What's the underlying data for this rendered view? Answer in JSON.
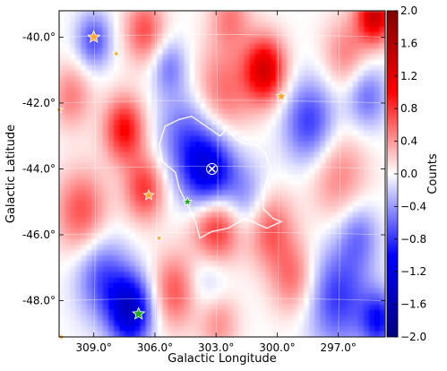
{
  "chart_data": {
    "type": "heatmap",
    "title": "",
    "xlabel": "Galactic Longitude",
    "ylabel": "Galactic Latitude",
    "colorbar_label": "Counts",
    "x_ticks": [
      309,
      306,
      303,
      300,
      297
    ],
    "x_tick_labels": [
      "309.0°",
      "306.0°",
      "303.0°",
      "300.0°",
      "297.0°"
    ],
    "y_ticks": [
      -40,
      -42,
      -44,
      -46,
      -48
    ],
    "y_tick_labels": [
      "-40.0°",
      "-42.0°",
      "-44.0°",
      "-46.0°",
      "-48.0°"
    ],
    "xlim": [
      310.7,
      294.7
    ],
    "ylim": [
      -49.1,
      -39.2
    ],
    "color_range": [
      -2.0,
      2.0
    ],
    "colorbar_ticks": [
      2.0,
      1.6,
      1.2,
      0.8,
      0.4,
      0.0,
      -0.4,
      -0.8,
      -1.2,
      -1.6,
      -2.0
    ],
    "colorbar_tick_labels": [
      "2.0",
      "1.6",
      "1.2",
      "0.8",
      "0.4",
      "0.0",
      "−0.4",
      "−0.8",
      "−1.2",
      "−1.6",
      "−2.0"
    ],
    "colormap": [
      "#00007f",
      "#0000ff",
      "#ffffff",
      "#ff0000",
      "#7f0000"
    ],
    "grid": true,
    "field_blobs": [
      {
        "lon": 303.3,
        "lat": -44.2,
        "amp": -1.3,
        "sigma": 0.9
      },
      {
        "lon": 304.5,
        "lat": -43.0,
        "amp": -0.6,
        "sigma": 1.0
      },
      {
        "lon": 301.5,
        "lat": -45.0,
        "amp": -0.5,
        "sigma": 0.8
      },
      {
        "lon": 307.2,
        "lat": -48.3,
        "amp": -1.4,
        "sigma": 0.75
      },
      {
        "lon": 308.6,
        "lat": -47.3,
        "amp": -0.7,
        "sigma": 0.9
      },
      {
        "lon": 309.0,
        "lat": -40.1,
        "amp": -0.7,
        "sigma": 0.6
      },
      {
        "lon": 305.3,
        "lat": -40.9,
        "amp": -0.5,
        "sigma": 0.6
      },
      {
        "lon": 298.4,
        "lat": -42.6,
        "amp": -0.8,
        "sigma": 0.9
      },
      {
        "lon": 297.0,
        "lat": -47.9,
        "amp": -0.8,
        "sigma": 1.1
      },
      {
        "lon": 295.6,
        "lat": -41.8,
        "amp": -0.6,
        "sigma": 0.7
      },
      {
        "lon": 295.0,
        "lat": -48.6,
        "amp": -0.9,
        "sigma": 0.6
      },
      {
        "lon": 303.4,
        "lat": -47.4,
        "amp": -0.4,
        "sigma": 0.8
      },
      {
        "lon": 300.6,
        "lat": -41.0,
        "amp": 1.3,
        "sigma": 0.7
      },
      {
        "lon": 302.7,
        "lat": -41.7,
        "amp": 0.6,
        "sigma": 1.0
      },
      {
        "lon": 307.5,
        "lat": -42.8,
        "amp": 1.0,
        "sigma": 0.7
      },
      {
        "lon": 306.5,
        "lat": -44.6,
        "amp": 0.8,
        "sigma": 0.7
      },
      {
        "lon": 303.0,
        "lat": -45.7,
        "amp": 1.1,
        "sigma": 0.85
      },
      {
        "lon": 300.4,
        "lat": -45.8,
        "amp": 0.7,
        "sigma": 0.8
      },
      {
        "lon": 299.2,
        "lat": -47.3,
        "amp": 0.6,
        "sigma": 0.8
      },
      {
        "lon": 305.0,
        "lat": -47.7,
        "amp": 0.7,
        "sigma": 0.8
      },
      {
        "lon": 297.0,
        "lat": -44.2,
        "amp": 0.5,
        "sigma": 1.0
      },
      {
        "lon": 306.5,
        "lat": -39.8,
        "amp": 0.7,
        "sigma": 0.7
      },
      {
        "lon": 302.3,
        "lat": -39.4,
        "amp": 0.5,
        "sigma": 0.7
      },
      {
        "lon": 295.2,
        "lat": -39.3,
        "amp": 1.4,
        "sigma": 0.6
      },
      {
        "lon": 296.6,
        "lat": -40.5,
        "amp": 0.5,
        "sigma": 0.8
      },
      {
        "lon": 310.1,
        "lat": -41.8,
        "amp": 0.5,
        "sigma": 0.7
      },
      {
        "lon": 309.6,
        "lat": -45.3,
        "amp": 0.7,
        "sigma": 0.9
      },
      {
        "lon": 302.9,
        "lat": -48.6,
        "amp": 0.5,
        "sigma": 0.7
      },
      {
        "lon": 296.0,
        "lat": -46.0,
        "amp": -0.5,
        "sigma": 0.7
      }
    ],
    "contour_points": [
      [
        305.5,
        -42.7
      ],
      [
        304.8,
        -42.5
      ],
      [
        304.2,
        -42.4
      ],
      [
        303.5,
        -42.7
      ],
      [
        302.8,
        -43.0
      ],
      [
        302.5,
        -42.8
      ],
      [
        301.8,
        -43.2
      ],
      [
        301.0,
        -43.3
      ],
      [
        300.6,
        -43.5
      ],
      [
        300.3,
        -44.0
      ],
      [
        300.6,
        -44.5
      ],
      [
        300.7,
        -45.2
      ],
      [
        300.2,
        -45.5
      ],
      [
        299.8,
        -45.6
      ],
      [
        300.5,
        -45.8
      ],
      [
        301.6,
        -45.5
      ],
      [
        302.4,
        -45.8
      ],
      [
        303.2,
        -45.9
      ],
      [
        303.8,
        -46.1
      ],
      [
        304.0,
        -45.6
      ],
      [
        304.4,
        -45.1
      ],
      [
        304.8,
        -44.6
      ],
      [
        305.0,
        -44.1
      ],
      [
        305.6,
        -43.8
      ],
      [
        305.8,
        -43.3
      ],
      [
        305.5,
        -42.7
      ]
    ],
    "sources": [
      {
        "lon": 309.0,
        "lat": -40.0,
        "marker": "star",
        "color": "#ffaa33",
        "size": 7
      },
      {
        "lon": 307.9,
        "lat": -40.5,
        "marker": "star",
        "color": "#ffaa33",
        "size": 4
      },
      {
        "lon": 310.7,
        "lat": -42.2,
        "marker": "star",
        "color": "#ffaa33",
        "size": 4
      },
      {
        "lon": 299.8,
        "lat": -41.8,
        "marker": "star",
        "color": "#ffaa33",
        "size": 6
      },
      {
        "lon": 306.3,
        "lat": -44.8,
        "marker": "star",
        "color": "#ffaa33",
        "size": 6
      },
      {
        "lon": 305.8,
        "lat": -46.1,
        "marker": "star",
        "color": "#ffaa33",
        "size": 4
      },
      {
        "lon": 304.4,
        "lat": -45.0,
        "marker": "star",
        "color": "#22aa22",
        "size": 5
      },
      {
        "lon": 306.8,
        "lat": -48.4,
        "marker": "star",
        "color": "#22aa22",
        "size": 7
      },
      {
        "lon": 310.6,
        "lat": -49.1,
        "marker": "star",
        "color": "#ffaa33",
        "size": 4
      },
      {
        "lon": 303.2,
        "lat": -44.0,
        "marker": "cross-circle",
        "color": "#0000ff",
        "size": 6
      }
    ]
  }
}
